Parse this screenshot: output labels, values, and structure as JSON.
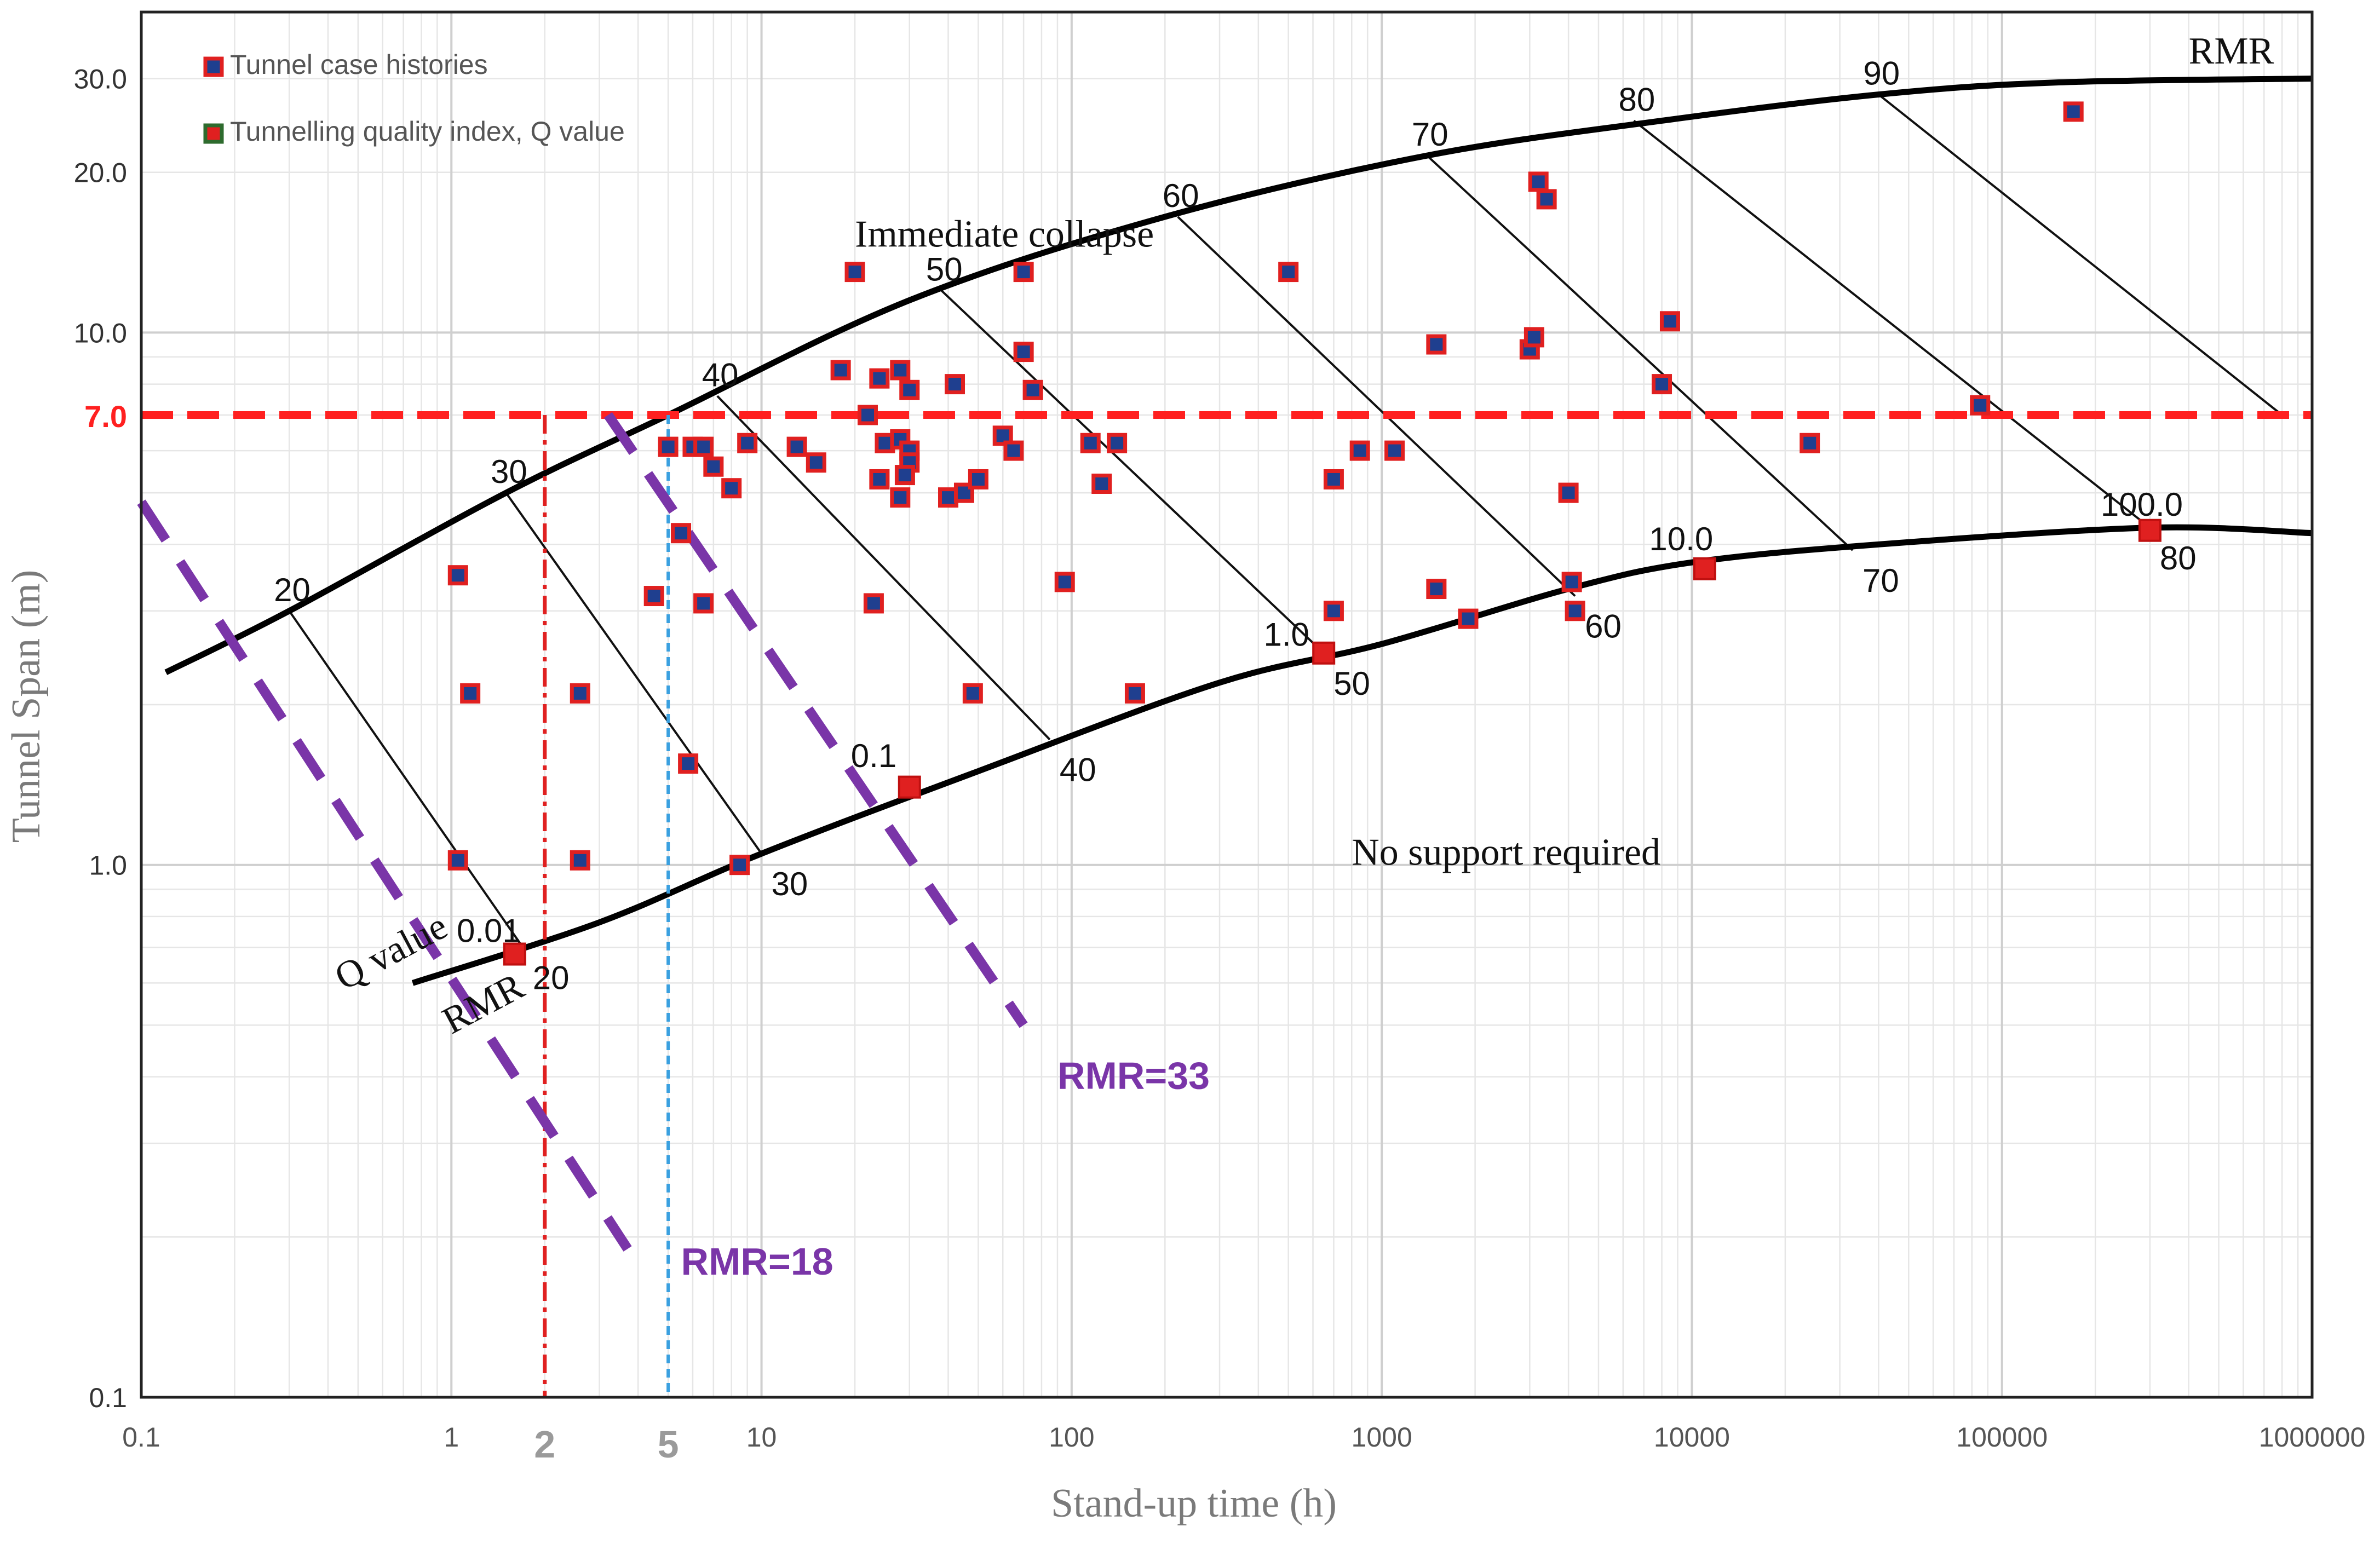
{
  "chart_data": {
    "type": "scatter",
    "title": "",
    "xlabel": "Stand-up time (h)",
    "ylabel": "Tunnel Span (m)",
    "xscale": "log",
    "yscale": "log",
    "xlim": [
      0.1,
      1000000
    ],
    "ylim": [
      0.1,
      40
    ],
    "x_ticks": [
      {
        "v": 0.1,
        "label": "0.1"
      },
      {
        "v": 1,
        "label": "1"
      },
      {
        "v": 10,
        "label": "10"
      },
      {
        "v": 100,
        "label": "100"
      },
      {
        "v": 1000,
        "label": "1000"
      },
      {
        "v": 10000,
        "label": "10000"
      },
      {
        "v": 100000,
        "label": "100000"
      },
      {
        "v": 1000000,
        "label": "1000000"
      }
    ],
    "y_ticks": [
      {
        "v": 0.1,
        "label": "0.1"
      },
      {
        "v": 1,
        "label": "1.0"
      },
      {
        "v": 10,
        "label": "10.0"
      },
      {
        "v": 20,
        "label": "20.0"
      },
      {
        "v": 30,
        "label": "30.0"
      }
    ],
    "highlight_ticks": {
      "x": [
        {
          "v": 2,
          "label": "2"
        },
        {
          "v": 5,
          "label": "5"
        }
      ],
      "y": [
        {
          "v": 7,
          "label": "7.0"
        }
      ]
    },
    "legend": {
      "position": "top-left",
      "entries": [
        {
          "label": "Tunnel case histories",
          "fill": "#1f3f8f",
          "stroke": "#e02020"
        },
        {
          "label": "Tunnelling quality index, Q value",
          "fill": "#e02020",
          "stroke": "#2e6b2e"
        }
      ]
    },
    "upper_boundary": {
      "label": "RMR",
      "points": [
        [
          0.12,
          2.3
        ],
        [
          0.3,
          3.0
        ],
        [
          1.5,
          5.0
        ],
        [
          5,
          7.0
        ],
        [
          30,
          11.5
        ],
        [
          200,
          16.5
        ],
        [
          1400,
          21.5
        ],
        [
          8000,
          25.0
        ],
        [
          40000,
          28.0
        ],
        [
          150000,
          29.5
        ],
        [
          1000000,
          30.0
        ]
      ],
      "rmr_labels": [
        {
          "v": "20",
          "x": 0.3,
          "y": 3.0
        },
        {
          "v": "30",
          "x": 1.5,
          "y": 5.0
        },
        {
          "v": "40",
          "x": 7.2,
          "y": 7.6
        },
        {
          "v": "50",
          "x": 38,
          "y": 12.0
        },
        {
          "v": "60",
          "x": 220,
          "y": 16.5
        },
        {
          "v": "70",
          "x": 1400,
          "y": 21.5
        },
        {
          "v": "80",
          "x": 6500,
          "y": 25.0
        },
        {
          "v": "90",
          "x": 40000,
          "y": 28.0
        }
      ]
    },
    "lower_boundary": {
      "label": "RMR",
      "points": [
        [
          0.75,
          0.6
        ],
        [
          3,
          0.78
        ],
        [
          10,
          1.05
        ],
        [
          50,
          1.5
        ],
        [
          300,
          2.2
        ],
        [
          1000,
          2.6
        ],
        [
          4000,
          3.3
        ],
        [
          10000,
          3.7
        ],
        [
          40000,
          4.0
        ],
        [
          300000,
          4.3
        ],
        [
          1000000,
          4.2
        ]
      ],
      "rmr_labels": [
        {
          "v": "20",
          "x": 1.7,
          "y": 0.7
        },
        {
          "v": "30",
          "x": 10,
          "y": 1.05
        },
        {
          "v": "40",
          "x": 85,
          "y": 1.72
        },
        {
          "v": "50",
          "x": 650,
          "y": 2.5
        },
        {
          "v": "60",
          "x": 4200,
          "y": 3.2
        },
        {
          "v": "70",
          "x": 33000,
          "y": 3.9
        },
        {
          "v": "80",
          "x": 300000,
          "y": 4.3
        }
      ]
    },
    "rmr_contour_lines": [
      {
        "rmr": 20,
        "from": [
          0.3,
          3.0
        ],
        "to": [
          1.7,
          0.7
        ]
      },
      {
        "rmr": 30,
        "from": [
          1.5,
          5.0
        ],
        "to": [
          10,
          1.05
        ]
      },
      {
        "rmr": 40,
        "from": [
          7.2,
          7.6
        ],
        "to": [
          85,
          1.72
        ]
      },
      {
        "rmr": 50,
        "from": [
          38,
          12.0
        ],
        "to": [
          650,
          2.5
        ]
      },
      {
        "rmr": 60,
        "from": [
          220,
          16.5
        ],
        "to": [
          4200,
          3.2
        ]
      },
      {
        "rmr": 70,
        "from": [
          1400,
          21.5
        ],
        "to": [
          33000,
          3.9
        ]
      },
      {
        "rmr": 80,
        "from": [
          6500,
          25.0
        ],
        "to": [
          300000,
          4.3
        ]
      },
      {
        "rmr": 90,
        "from": [
          40000,
          28.0
        ],
        "to": [
          800000,
          7.0
        ]
      }
    ],
    "q_value_labels": [
      {
        "v": "0.01",
        "x": 1.5,
        "y": 0.68
      },
      {
        "v": "0.1",
        "x": 28,
        "y": 1.45
      },
      {
        "v": "1.0",
        "x": 600,
        "y": 2.45
      },
      {
        "v": "10.0",
        "x": 10500,
        "y": 3.7
      },
      {
        "v": "100.0",
        "x": 300000,
        "y": 4.3
      }
    ],
    "q_value_points": [
      [
        1.6,
        0.68
      ],
      [
        30,
        1.4
      ],
      [
        650,
        2.5
      ],
      [
        11000,
        3.6
      ],
      [
        300000,
        4.25
      ]
    ],
    "case_histories": [
      [
        20,
        13
      ],
      [
        18,
        8.5
      ],
      [
        24,
        8.2
      ],
      [
        28,
        8.5
      ],
      [
        30,
        7.8
      ],
      [
        42,
        8
      ],
      [
        70,
        13
      ],
      [
        70,
        9.2
      ],
      [
        75,
        7.8
      ],
      [
        22,
        7.0
      ],
      [
        25,
        6.2
      ],
      [
        28,
        6.3
      ],
      [
        30,
        6.0
      ],
      [
        30,
        5.7
      ],
      [
        29,
        5.4
      ],
      [
        24,
        5.3
      ],
      [
        28,
        4.9
      ],
      [
        40,
        4.9
      ],
      [
        45,
        5.0
      ],
      [
        50,
        5.3
      ],
      [
        60,
        6.4
      ],
      [
        65,
        6.0
      ],
      [
        5,
        6.1
      ],
      [
        6,
        6.1
      ],
      [
        6.5,
        6.1
      ],
      [
        7,
        5.6
      ],
      [
        8,
        5.1
      ],
      [
        9,
        6.2
      ],
      [
        13,
        6.1
      ],
      [
        15,
        5.7
      ],
      [
        4.5,
        3.2
      ],
      [
        6.5,
        3.1
      ],
      [
        5.5,
        4.2
      ],
      [
        5.8,
        1.55
      ],
      [
        1.05,
        3.5
      ],
      [
        1.15,
        2.1
      ],
      [
        2.6,
        2.1
      ],
      [
        1.05,
        1.02
      ],
      [
        2.6,
        1.02
      ],
      [
        8.5,
        1.0
      ],
      [
        23,
        3.1
      ],
      [
        48,
        2.1
      ],
      [
        95,
        3.4
      ],
      [
        115,
        6.2
      ],
      [
        125,
        5.2
      ],
      [
        140,
        6.2
      ],
      [
        160,
        2.1
      ],
      [
        500,
        13
      ],
      [
        700,
        5.3
      ],
      [
        700,
        3.0
      ],
      [
        850,
        6.0
      ],
      [
        1100,
        6.0
      ],
      [
        1500,
        9.5
      ],
      [
        1500,
        3.3
      ],
      [
        1900,
        2.9
      ],
      [
        3000,
        9.3
      ],
      [
        3100,
        9.8
      ],
      [
        3200,
        19.2
      ],
      [
        3400,
        17.8
      ],
      [
        4000,
        5.0
      ],
      [
        4100,
        3.4
      ],
      [
        4200,
        3.0
      ],
      [
        8000,
        8.0
      ],
      [
        8500,
        10.5
      ],
      [
        24000,
        6.2
      ],
      [
        85000,
        7.3
      ],
      [
        170000,
        26
      ]
    ],
    "reference_lines": [
      {
        "axis": "y",
        "value": 7,
        "color": "#ff2020",
        "style": "dashed"
      },
      {
        "axis": "x",
        "value": 2,
        "color": "#e02020",
        "style": "dash-dot"
      },
      {
        "axis": "x",
        "value": 5,
        "color": "#3aa0e0",
        "style": "dotted"
      }
    ],
    "rmr_dashed_lines": [
      {
        "label": "RMR=18",
        "from": [
          0.1,
          4.8
        ],
        "to": [
          3.7,
          0.19
        ],
        "label_at": [
          5.5,
          0.17
        ]
      },
      {
        "label": "RMR=33",
        "from": [
          3.2,
          7.0
        ],
        "to": [
          70,
          0.5
        ],
        "label_at": [
          90,
          0.38
        ]
      }
    ],
    "annotations": [
      {
        "text": "Immediate collapse",
        "x": 20,
        "y": 14.5
      },
      {
        "text": "No support required",
        "x": 800,
        "y": 1.0
      },
      {
        "text": "Q value",
        "x": 0.45,
        "y": 0.58,
        "rotate": -28
      },
      {
        "text": "RMR",
        "x": 1.0,
        "y": 0.48,
        "rotate": -28
      },
      {
        "text": "RMR",
        "x": 400000,
        "y": 32
      }
    ]
  },
  "colors": {
    "accent_red": "#ff2020",
    "purple": "#7a35a8",
    "blue": "#3aa0e0",
    "marker_fill": "#1f3f8f",
    "marker_stroke": "#e02020"
  }
}
